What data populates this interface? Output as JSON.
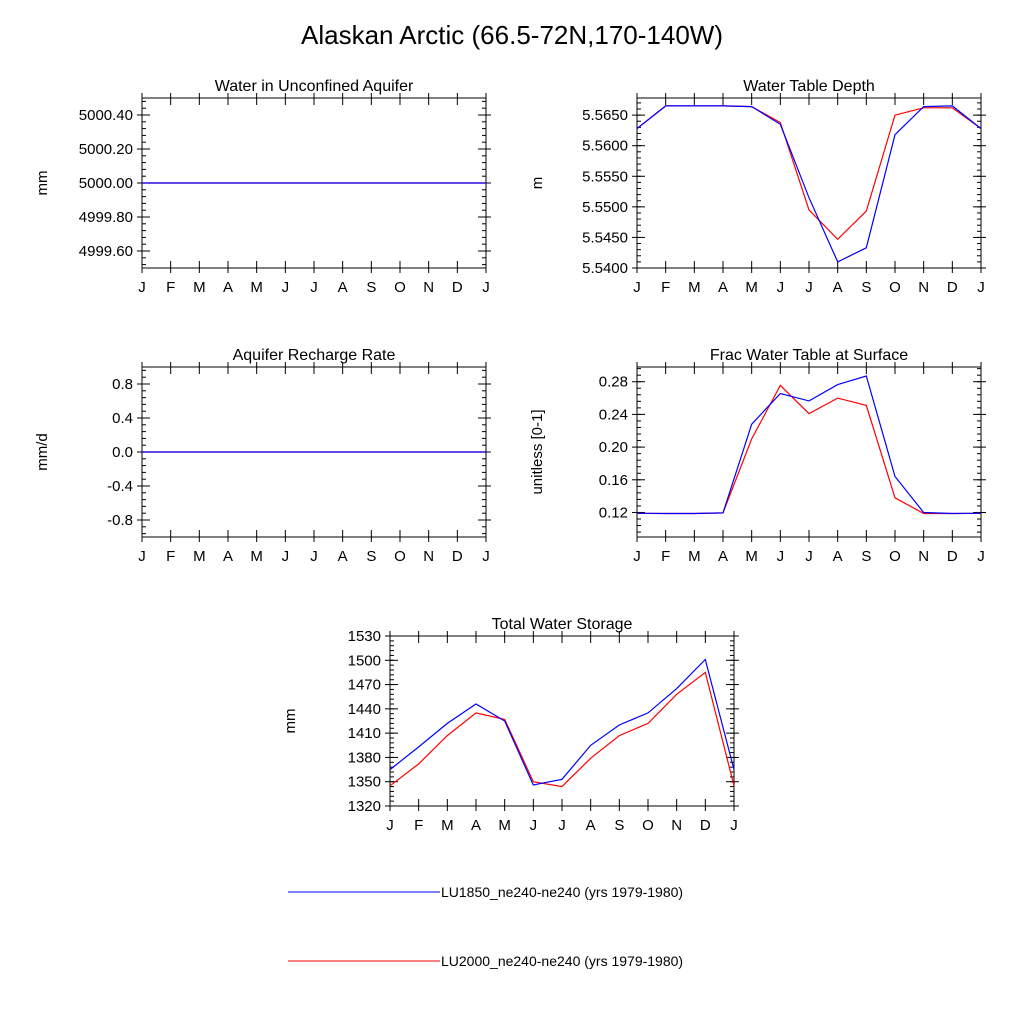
{
  "title": "Alaskan Arctic (66.5-72N,170-140W)",
  "legend": [
    {
      "name": "LU1850_ne240-ne240 (yrs 1979-1980)",
      "color": "#0000ff"
    },
    {
      "name": "LU2000_ne240-ne240 (yrs 1979-1980)",
      "color": "#ff0000"
    }
  ],
  "chart_data": [
    {
      "type": "line",
      "title": "Water in Unconfined Aquifer",
      "ylabel": "mm",
      "xlabel": "",
      "categories": [
        "J",
        "F",
        "M",
        "A",
        "M",
        "J",
        "J",
        "A",
        "S",
        "O",
        "N",
        "D",
        "J"
      ],
      "ylim": [
        4999.5,
        5000.5
      ],
      "yticks": [
        4999.6,
        4999.8,
        5000.0,
        5000.2,
        5000.4
      ],
      "ytick_labels": [
        "4999.60",
        "4999.80",
        "5000.00",
        "5000.20",
        "5000.40"
      ],
      "series": [
        {
          "name": "LU1850_ne240-ne240 (yrs 1979-1980)",
          "color": "#0000ff",
          "values": [
            5000,
            5000,
            5000,
            5000,
            5000,
            5000,
            5000,
            5000,
            5000,
            5000,
            5000,
            5000,
            5000
          ]
        },
        {
          "name": "LU2000_ne240-ne240 (yrs 1979-1980)",
          "color": "#ff0000",
          "values": [
            5000,
            5000,
            5000,
            5000,
            5000,
            5000,
            5000,
            5000,
            5000,
            5000,
            5000,
            5000,
            5000
          ]
        }
      ]
    },
    {
      "type": "line",
      "title": "Water Table Depth",
      "ylabel": "m",
      "xlabel": "",
      "categories": [
        "J",
        "F",
        "M",
        "A",
        "M",
        "J",
        "J",
        "A",
        "S",
        "O",
        "N",
        "D",
        "J"
      ],
      "ylim": [
        5.54,
        5.5678
      ],
      "yticks": [
        5.54,
        5.545,
        5.55,
        5.555,
        5.56,
        5.565
      ],
      "ytick_labels": [
        "5.5400",
        "5.5450",
        "5.5500",
        "5.5550",
        "5.5600",
        "5.5650"
      ],
      "series": [
        {
          "name": "LU1850_ne240-ne240 (yrs 1979-1980)",
          "color": "#0000ff",
          "values": [
            5.5628,
            5.5665,
            5.5665,
            5.5665,
            5.5664,
            5.5635,
            5.5515,
            5.541,
            5.5433,
            5.5618,
            5.5664,
            5.5665,
            5.5628
          ]
        },
        {
          "name": "LU2000_ne240-ne240 (yrs 1979-1980)",
          "color": "#ff0000",
          "values": [
            5.5628,
            5.5665,
            5.5665,
            5.5665,
            5.5664,
            5.5638,
            5.5495,
            5.5447,
            5.5493,
            5.565,
            5.5662,
            5.5662,
            5.5628
          ]
        }
      ]
    },
    {
      "type": "line",
      "title": "Aquifer Recharge Rate",
      "ylabel": "mm/d",
      "xlabel": "",
      "categories": [
        "J",
        "F",
        "M",
        "A",
        "M",
        "J",
        "J",
        "A",
        "S",
        "O",
        "N",
        "D",
        "J"
      ],
      "ylim": [
        -1.0,
        1.0
      ],
      "yticks": [
        -0.8,
        -0.4,
        0.0,
        0.4,
        0.8
      ],
      "ytick_labels": [
        "-0.8",
        "-0.4",
        "0.0",
        "0.4",
        "0.8"
      ],
      "series": [
        {
          "name": "LU1850_ne240-ne240 (yrs 1979-1980)",
          "color": "#0000ff",
          "values": [
            0,
            0,
            0,
            0,
            0,
            0,
            0,
            0,
            0,
            0,
            0,
            0,
            0
          ]
        },
        {
          "name": "LU2000_ne240-ne240 (yrs 1979-1980)",
          "color": "#ff0000",
          "values": [
            0,
            0,
            0,
            0,
            0,
            0,
            0,
            0,
            0,
            0,
            0,
            0,
            0
          ]
        }
      ]
    },
    {
      "type": "line",
      "title": "Frac Water Table at Surface",
      "ylabel": "unitless [0-1]",
      "xlabel": "",
      "categories": [
        "J",
        "F",
        "M",
        "A",
        "M",
        "J",
        "J",
        "A",
        "S",
        "O",
        "N",
        "D",
        "J"
      ],
      "ylim": [
        0.09,
        0.298
      ],
      "yticks": [
        0.12,
        0.16,
        0.2,
        0.24,
        0.28
      ],
      "ytick_labels": [
        "0.12",
        "0.16",
        "0.20",
        "0.24",
        "0.28"
      ],
      "series": [
        {
          "name": "LU1850_ne240-ne240 (yrs 1979-1980)",
          "color": "#0000ff",
          "values": [
            0.119,
            0.1188,
            0.1188,
            0.1195,
            0.228,
            0.2655,
            0.2565,
            0.2765,
            0.287,
            0.164,
            0.12,
            0.1188,
            0.119
          ]
        },
        {
          "name": "LU2000_ne240-ne240 (yrs 1979-1980)",
          "color": "#ff0000",
          "values": [
            0.119,
            0.1188,
            0.1188,
            0.1195,
            0.21,
            0.2755,
            0.241,
            0.26,
            0.251,
            0.138,
            0.1188,
            0.1188,
            0.119
          ]
        }
      ]
    },
    {
      "type": "line",
      "title": "Total Water Storage",
      "ylabel": "mm",
      "xlabel": "",
      "categories": [
        "J",
        "F",
        "M",
        "A",
        "M",
        "J",
        "J",
        "A",
        "S",
        "O",
        "N",
        "D",
        "J"
      ],
      "ylim": [
        1320,
        1530
      ],
      "yticks": [
        1320,
        1350,
        1380,
        1410,
        1440,
        1470,
        1500,
        1530
      ],
      "ytick_labels": [
        "1320",
        "1350",
        "1380",
        "1410",
        "1440",
        "1470",
        "1500",
        "1530"
      ],
      "series": [
        {
          "name": "LU1850_ne240-ne240 (yrs 1979-1980)",
          "color": "#0000ff",
          "values": [
            1365,
            1393,
            1422,
            1446,
            1425,
            1346,
            1353,
            1395,
            1420,
            1435,
            1465,
            1501,
            1365
          ]
        },
        {
          "name": "LU2000_ne240-ne240 (yrs 1979-1980)",
          "color": "#ff0000",
          "values": [
            1345,
            1372,
            1407,
            1435,
            1427,
            1350,
            1344,
            1379,
            1407,
            1422,
            1458,
            1485,
            1345
          ]
        }
      ]
    }
  ]
}
